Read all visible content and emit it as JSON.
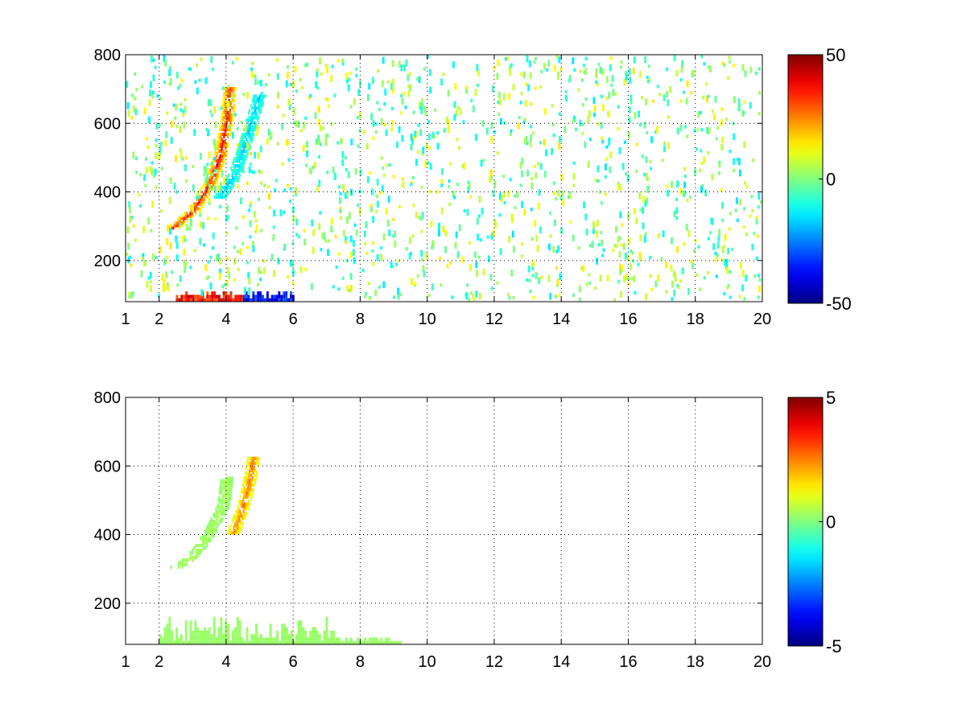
{
  "chart_data": [
    {
      "type": "heatmap",
      "title": "",
      "xlabel": "",
      "ylabel": "",
      "xlim": [
        1,
        20
      ],
      "ylim": [
        80,
        800
      ],
      "x_tick_labels": [
        "1",
        "2",
        "4",
        "6",
        "8",
        "10",
        "12",
        "14",
        "16",
        "18",
        "20"
      ],
      "y_tick_labels": [
        "200",
        "400",
        "600",
        "800"
      ],
      "grid": true,
      "colormap": "jet",
      "clim": [
        -50,
        50
      ],
      "colorbar_tick_labels": [
        "50",
        "0",
        "-50"
      ],
      "features": [
        {
          "label": "",
          "kind": "curved-ridge",
          "value": 40,
          "points": [
            [
              2.4,
              290
            ],
            [
              3.0,
              340
            ],
            [
              3.5,
              420
            ],
            [
              3.8,
              500
            ],
            [
              4.0,
              600
            ],
            [
              4.1,
              700
            ]
          ]
        },
        {
          "label": "",
          "kind": "curved-ridge",
          "value": -20,
          "points": [
            [
              3.8,
              380
            ],
            [
              4.2,
              440
            ],
            [
              4.5,
              520
            ],
            [
              4.8,
              620
            ],
            [
              5.0,
              680
            ]
          ]
        },
        {
          "label": "",
          "kind": "low-band",
          "value": 45,
          "x_range": [
            2.5,
            4.5
          ],
          "y_range": [
            80,
            110
          ]
        },
        {
          "label": "",
          "kind": "low-band",
          "value": -45,
          "x_range": [
            4.5,
            6.0
          ],
          "y_range": [
            80,
            110
          ]
        },
        {
          "label": "",
          "kind": "scattered-noise",
          "value_range": [
            -15,
            15
          ],
          "x_range": [
            1,
            20
          ],
          "y_range": [
            80,
            800
          ]
        }
      ]
    },
    {
      "type": "heatmap",
      "title": "",
      "xlabel": "",
      "ylabel": "",
      "xlim": [
        1,
        20
      ],
      "ylim": [
        80,
        800
      ],
      "x_tick_labels": [
        "1",
        "2",
        "4",
        "6",
        "8",
        "10",
        "12",
        "14",
        "16",
        "18",
        "20"
      ],
      "y_tick_labels": [
        "200",
        "400",
        "600",
        "800"
      ],
      "grid": true,
      "colormap": "jet",
      "clim": [
        -5,
        5
      ],
      "colorbar_tick_labels": [
        "5",
        "0",
        "-5"
      ],
      "features": [
        {
          "label": "",
          "kind": "curved-ridge",
          "value": 0.5,
          "points": [
            [
              2.5,
              300
            ],
            [
              3.0,
              330
            ],
            [
              3.5,
              400
            ],
            [
              3.9,
              480
            ],
            [
              4.0,
              560
            ]
          ]
        },
        {
          "label": "",
          "kind": "curved-ridge",
          "value": 3,
          "points": [
            [
              4.2,
              400
            ],
            [
              4.5,
              480
            ],
            [
              4.7,
              560
            ],
            [
              4.8,
              620
            ]
          ]
        },
        {
          "label": "",
          "kind": "low-band",
          "value": 0.3,
          "x_range": [
            2.0,
            7.2
          ],
          "y_range": [
            80,
            160
          ]
        },
        {
          "label": "",
          "kind": "low-band",
          "value": 0.3,
          "x_range": [
            7.2,
            9.2
          ],
          "y_range": [
            80,
            100
          ]
        }
      ]
    }
  ]
}
